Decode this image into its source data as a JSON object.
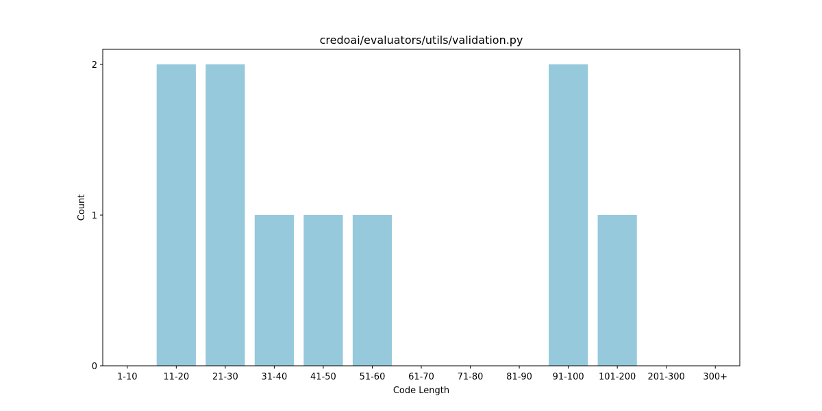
{
  "chart_data": {
    "type": "bar",
    "title": "credoai/evaluators/utils/validation.py",
    "xlabel": "Code Length",
    "ylabel": "Count",
    "categories": [
      "1-10",
      "11-20",
      "21-30",
      "31-40",
      "41-50",
      "51-60",
      "61-70",
      "71-80",
      "81-90",
      "91-100",
      "101-200",
      "201-300",
      "300+"
    ],
    "values": [
      0,
      2,
      2,
      1,
      1,
      1,
      0,
      0,
      0,
      2,
      1,
      0,
      0
    ],
    "yticks": [
      "0",
      "1",
      "2"
    ],
    "ylim": [
      0,
      2.1
    ],
    "bar_color": "#96c9dc",
    "grid": false,
    "legend": "none"
  }
}
